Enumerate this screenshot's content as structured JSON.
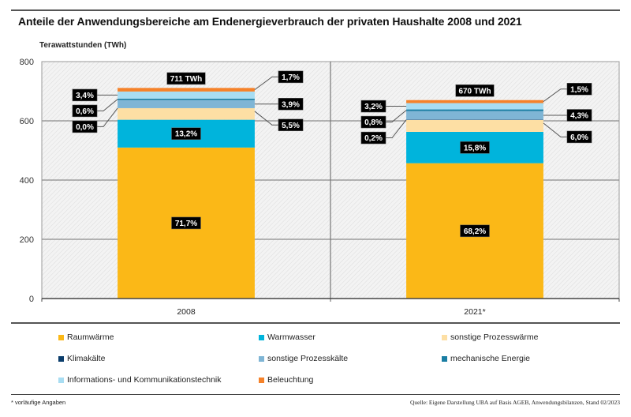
{
  "chart_data": {
    "type": "bar",
    "stacked": true,
    "title": "Anteile der Anwendungsbereiche am Endenergieverbrauch der privaten Haushalte 2008 und 2021",
    "ylabel": "Terawattstunden (TWh)",
    "xlabel": "",
    "ylim": [
      0,
      800
    ],
    "yticks": [
      0,
      200,
      400,
      600,
      800
    ],
    "ytick_labels": [
      "0",
      "200",
      "400",
      "600",
      "800"
    ],
    "grid": true,
    "categories": [
      "2008",
      "2021*"
    ],
    "totals": [
      711,
      670
    ],
    "total_labels": [
      "711 TWh",
      "670 TWh"
    ],
    "series": [
      {
        "name": "Raumwärme",
        "color": "#FBB817",
        "shares": [
          71.7,
          68.2
        ],
        "share_labels": [
          "71,7%",
          "68,2%"
        ],
        "values": [
          509.8,
          456.9
        ]
      },
      {
        "name": "Warmwasser",
        "color": "#00B4DC",
        "shares": [
          13.2,
          15.8
        ],
        "share_labels": [
          "13,2%",
          "15,8%"
        ],
        "values": [
          93.9,
          105.9
        ]
      },
      {
        "name": "sonstige Prozesswärme",
        "color": "#FDDFA4",
        "shares": [
          5.5,
          6.0
        ],
        "share_labels": [
          "5,5%",
          "6,0%"
        ],
        "values": [
          39.1,
          40.2
        ]
      },
      {
        "name": "Klimakälte",
        "color": "#0B3D6B",
        "shares": [
          0.0,
          0.2
        ],
        "share_labels": [
          "0,0%",
          "0,2%"
        ],
        "values": [
          0.0,
          1.3
        ]
      },
      {
        "name": "sonstige Prozesskälte",
        "color": "#7FB5D5",
        "shares": [
          3.9,
          4.3
        ],
        "share_labels": [
          "3,9%",
          "4,3%"
        ],
        "values": [
          27.7,
          28.8
        ]
      },
      {
        "name": "mechanische Energie",
        "color": "#1A7EA3",
        "shares": [
          0.6,
          0.8
        ],
        "share_labels": [
          "0,6%",
          "0,8%"
        ],
        "values": [
          4.3,
          5.4
        ]
      },
      {
        "name": "Informations- und Kommunikationstechnik",
        "color": "#A8DDF2",
        "shares": [
          3.4,
          3.2
        ],
        "share_labels": [
          "3,4%",
          "3,2%"
        ],
        "values": [
          24.2,
          21.4
        ]
      },
      {
        "name": "Beleuchtung",
        "color": "#F5822A",
        "shares": [
          1.7,
          1.5
        ],
        "share_labels": [
          "1,7%",
          "1,5%"
        ],
        "values": [
          12.1,
          10.1
        ]
      }
    ],
    "legend_position": "bottom"
  },
  "footnote": "* vorläufige Angaben",
  "source": "Quelle: Eigene Darstellung UBA auf Basis AGEB, Anwendungsbilanzen, Stand 02/2023"
}
